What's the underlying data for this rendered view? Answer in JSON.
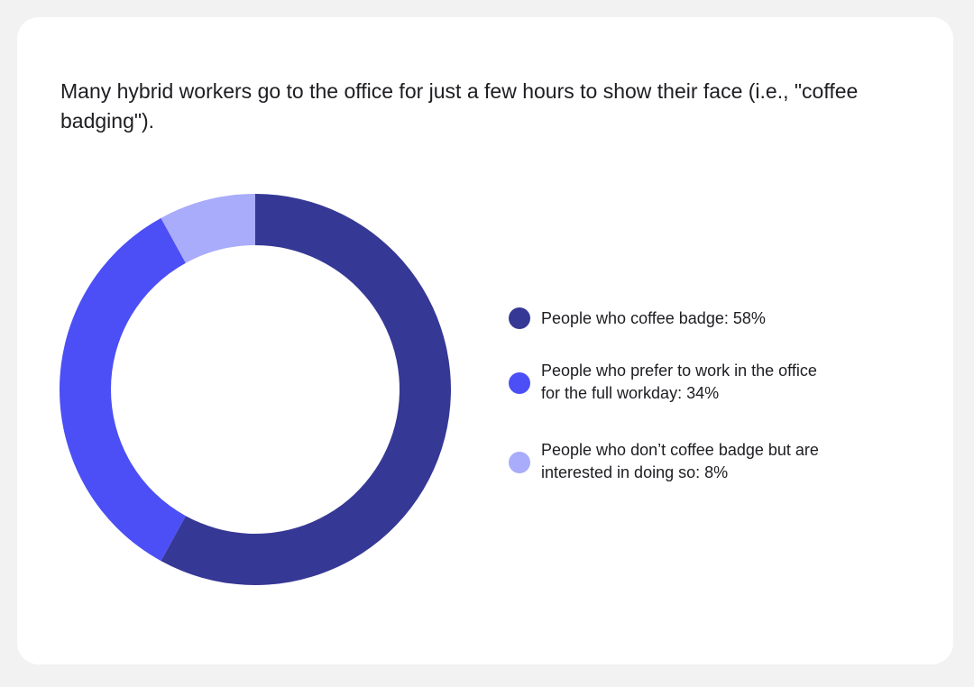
{
  "title": "Many hybrid workers go to the office for just a few hours to show their face (i.e., \"coffee badging\").",
  "chart_data": {
    "type": "pie",
    "style": "donut",
    "title": "Many hybrid workers go to the office for just a few hours to show their face (i.e., \"coffee badging\").",
    "legend_position": "right",
    "slices": [
      {
        "label": "People who coffee badge",
        "value": 58,
        "color": "#363895"
      },
      {
        "label": "People who prefer to work in the office for the full workday",
        "value": 34,
        "color": "#4c4ff5"
      },
      {
        "label": "People who don’t coffee badge but are interested in doing so",
        "value": 8,
        "color": "#a9abfb"
      }
    ]
  },
  "legend": [
    {
      "text": "People who coffee badge: 58%",
      "color": "#363895"
    },
    {
      "text": "People who prefer to work in the office\nfor the full workday: 34%",
      "color": "#4c4ff5"
    },
    {
      "text": "People who don’t coffee badge but are\ninterested in doing so: 8%",
      "color": "#a9abfb"
    }
  ]
}
